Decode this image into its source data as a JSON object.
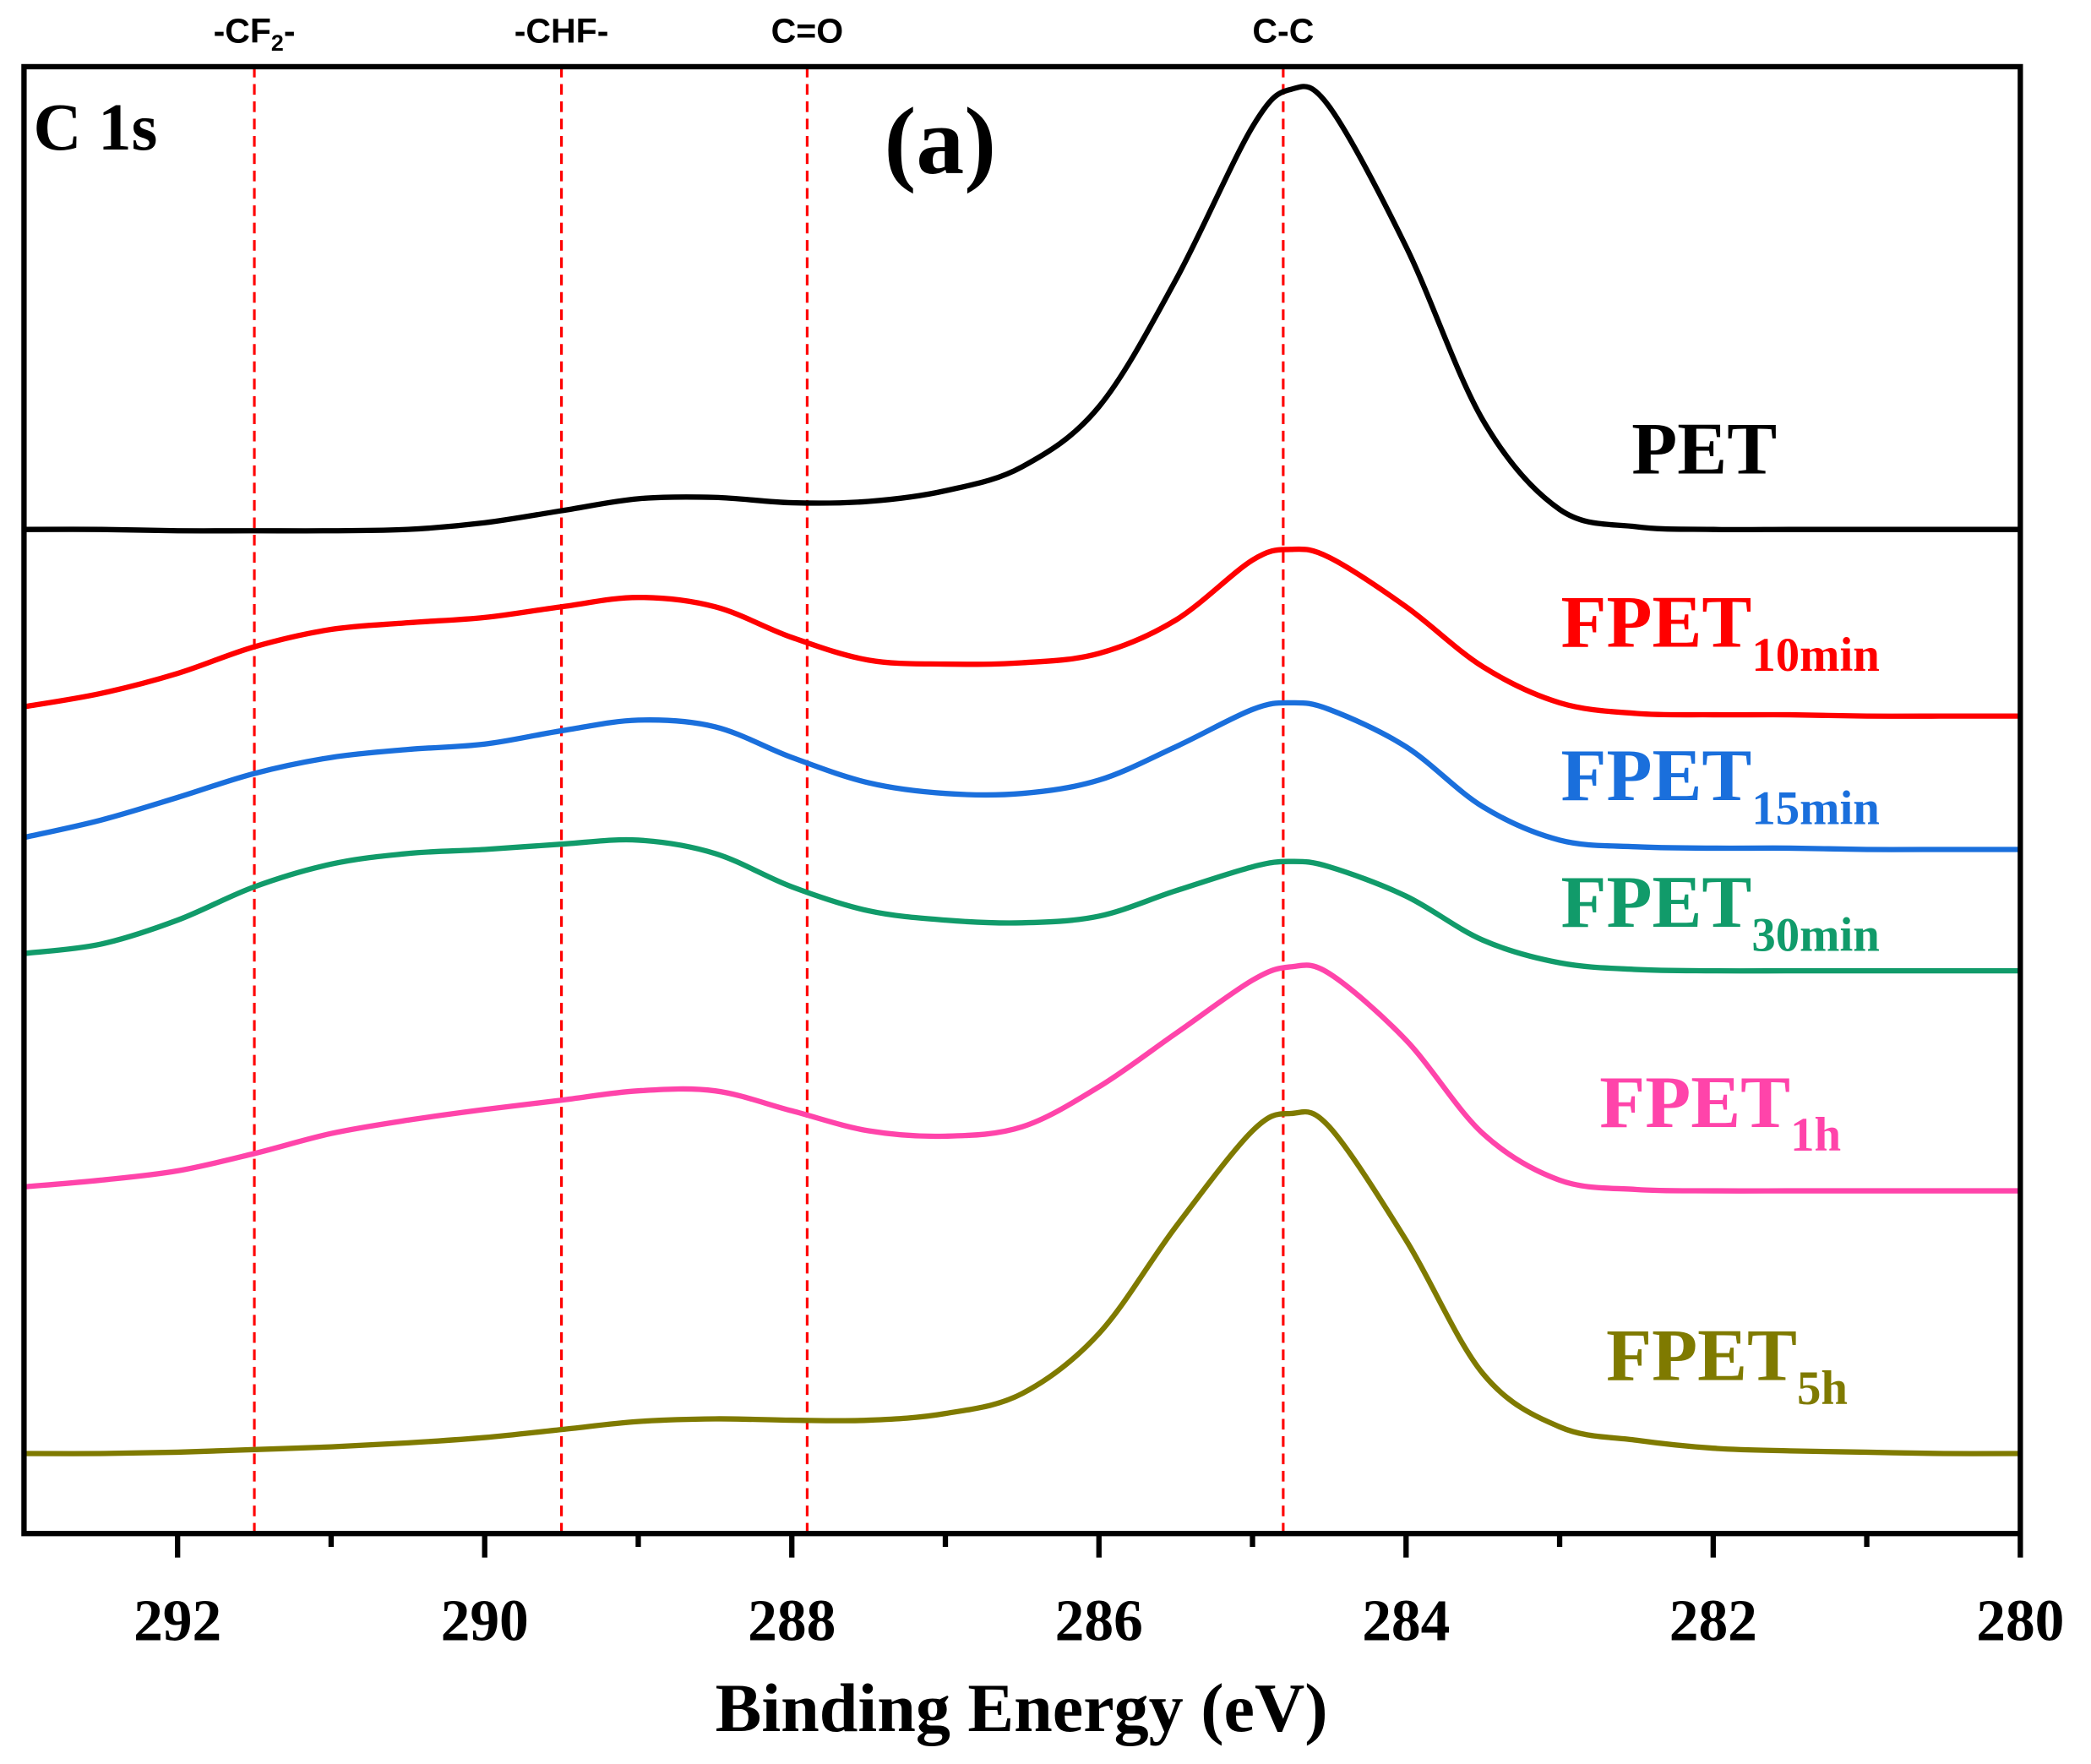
{
  "chart_data": {
    "type": "line",
    "panel_label": "(a)",
    "region_label": "C 1s",
    "x_label": "Binding Energy (eV)",
    "xlim": [
      293,
      280
    ],
    "xticks": [
      292,
      290,
      288,
      286,
      284,
      282,
      280
    ],
    "xminor_ticks": [
      291,
      289,
      287,
      285,
      283,
      281
    ],
    "ylim": [
      0,
      1100
    ],
    "markers": [
      {
        "x": 291.5,
        "label": "-CF",
        "sub": "2",
        "suffix": "-"
      },
      {
        "x": 289.5,
        "label": "-CHF-"
      },
      {
        "x": 287.9,
        "label": "C=O"
      },
      {
        "x": 284.8,
        "label": "C-C"
      }
    ],
    "marker_color": "#ff0000",
    "x": [
      293,
      292.5,
      292,
      291.5,
      291,
      290.5,
      290,
      289.5,
      289,
      288.5,
      288,
      287.5,
      287,
      286.5,
      286,
      285.5,
      285,
      284.75,
      284.5,
      284,
      283.5,
      283,
      282.5,
      282,
      281.5,
      281,
      280.5,
      280
    ],
    "series": [
      {
        "name": "PET",
        "color": "#000000",
        "values": [
          753,
          753,
          752,
          752,
          752,
          753,
          758,
          767,
          776,
          777,
          773,
          774,
          782,
          800,
          845,
          940,
          1055,
          1083,
          1070,
          965,
          835,
          768,
          755,
          753,
          753,
          753,
          753,
          753
        ]
      },
      {
        "name": "FPET",
        "subscript": "10min",
        "color": "#ff0000",
        "values": [
          620,
          630,
          645,
          665,
          678,
          683,
          687,
          695,
          702,
          695,
          672,
          655,
          652,
          653,
          660,
          685,
          730,
          738,
          732,
          695,
          650,
          623,
          615,
          614,
          614,
          613,
          613,
          613
        ]
      },
      {
        "name": "FPET",
        "subscript": "15min",
        "color": "#1a6fdc",
        "values": [
          522,
          535,
          552,
          570,
          582,
          588,
          592,
          602,
          610,
          605,
          582,
          563,
          555,
          555,
          565,
          590,
          618,
          623,
          618,
          590,
          545,
          520,
          515,
          514,
          514,
          513,
          513,
          513
        ]
      },
      {
        "name": "FPET",
        "subscript": "30min",
        "color": "#119b6a",
        "values": [
          435,
          442,
          460,
          485,
          502,
          510,
          513,
          517,
          520,
          510,
          485,
          467,
          460,
          458,
          463,
          482,
          500,
          504,
          500,
          478,
          445,
          428,
          423,
          422,
          422,
          422,
          422,
          422
        ]
      },
      {
        "name": "FPET",
        "subscript": "1h",
        "color": "#ff44aa",
        "values": [
          260,
          265,
          272,
          285,
          300,
          310,
          318,
          325,
          332,
          332,
          317,
          302,
          298,
          305,
          335,
          375,
          415,
          425,
          420,
          370,
          300,
          265,
          258,
          257,
          257,
          257,
          257,
          257
        ]
      },
      {
        "name": "FPET",
        "subscript": "5h",
        "color": "#7f7a00",
        "values": [
          60,
          60,
          61,
          63,
          65,
          68,
          72,
          78,
          84,
          86,
          85,
          85,
          90,
          105,
          150,
          230,
          302,
          315,
          305,
          220,
          120,
          80,
          70,
          64,
          62,
          61,
          60,
          60
        ]
      }
    ]
  }
}
